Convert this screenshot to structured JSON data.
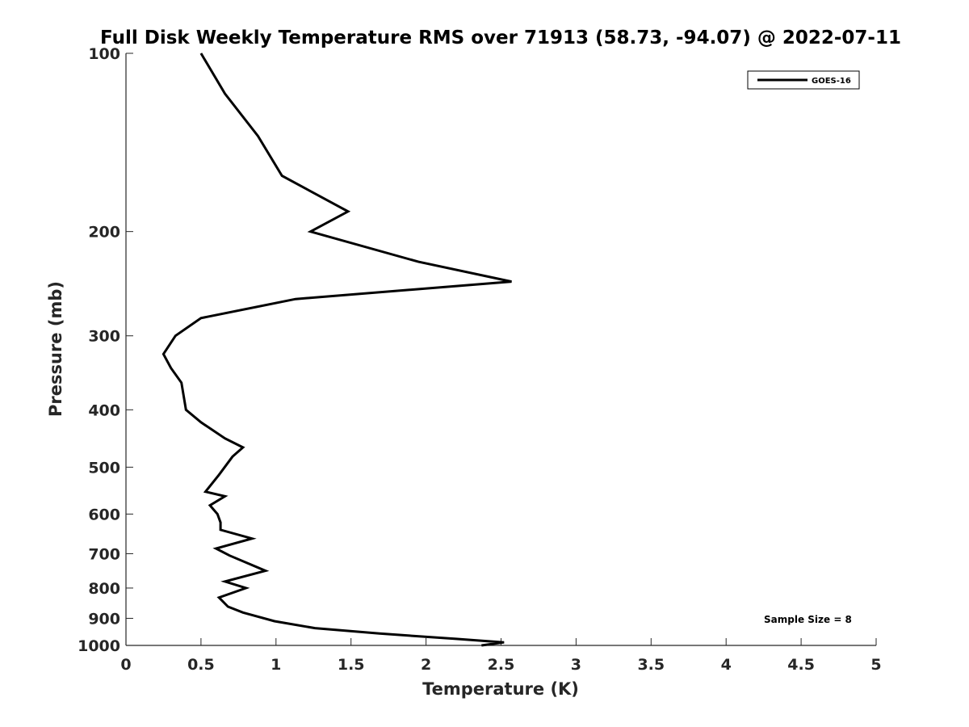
{
  "chart_data": {
    "type": "line",
    "title": "Full Disk Weekly Temperature RMS over 71913 (58.73, -94.07) @ 2022-07-11",
    "xlabel": "Temperature (K)",
    "ylabel": "Pressure (mb)",
    "xlim": [
      0,
      5
    ],
    "ylim": [
      100,
      1000
    ],
    "yscale": "log",
    "yreversed": true,
    "grid": false,
    "x_ticks": [
      "0",
      "0.5",
      "1",
      "1.5",
      "2",
      "2.5",
      "3",
      "3.5",
      "4",
      "4.5",
      "5"
    ],
    "y_ticks": [
      "100",
      "200",
      "300",
      "400",
      "500",
      "600",
      "700",
      "800",
      "900",
      "1000"
    ],
    "legend": {
      "placement": "top-right",
      "entries": [
        "GOES-16"
      ]
    },
    "annotation": "Sample Size = 8",
    "series": [
      {
        "name": "GOES-16",
        "color": "#000000",
        "points": [
          [
            0.5,
            100
          ],
          [
            0.66,
            117
          ],
          [
            0.88,
            138
          ],
          [
            1.04,
            161
          ],
          [
            1.48,
            185
          ],
          [
            1.23,
            200
          ],
          [
            1.95,
            225
          ],
          [
            2.57,
            243
          ],
          [
            1.13,
            260
          ],
          [
            0.5,
            280
          ],
          [
            0.33,
            300
          ],
          [
            0.25,
            322
          ],
          [
            0.3,
            340
          ],
          [
            0.37,
            360
          ],
          [
            0.4,
            400
          ],
          [
            0.5,
            420
          ],
          [
            0.66,
            447
          ],
          [
            0.78,
            463
          ],
          [
            0.71,
            480
          ],
          [
            0.62,
            515
          ],
          [
            0.53,
            550
          ],
          [
            0.66,
            560
          ],
          [
            0.56,
            580
          ],
          [
            0.61,
            600
          ],
          [
            0.63,
            620
          ],
          [
            0.63,
            638
          ],
          [
            0.84,
            660
          ],
          [
            0.6,
            686
          ],
          [
            0.69,
            705
          ],
          [
            0.93,
            748
          ],
          [
            0.66,
            780
          ],
          [
            0.8,
            800
          ],
          [
            0.62,
            830
          ],
          [
            0.68,
            860
          ],
          [
            0.78,
            880
          ],
          [
            0.99,
            910
          ],
          [
            1.26,
            935
          ],
          [
            1.69,
            955
          ],
          [
            2.2,
            975
          ],
          [
            2.52,
            988
          ],
          [
            2.37,
            1000
          ]
        ]
      }
    ]
  }
}
